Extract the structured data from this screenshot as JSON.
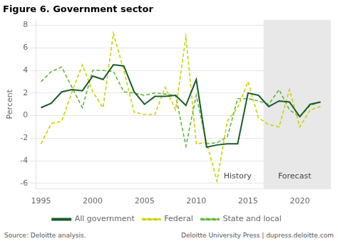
{
  "chart_data": {
    "type": "line",
    "title": "Figure 6. Government sector",
    "ylabel": "Percent",
    "footnotes": [
      "Source: Deloitte analysis.",
      "Deloitte University Press  |  dupress.deloitte.com"
    ],
    "x": [
      1995,
      1996,
      1997,
      1998,
      1999,
      2000,
      2001,
      2002,
      2003,
      2004,
      2005,
      2006,
      2007,
      2008,
      2009,
      2010,
      2011,
      2012,
      2013,
      2014,
      2015,
      2016,
      2017,
      2018,
      2019,
      2020,
      2021,
      2022
    ],
    "series": [
      {
        "name": "All government",
        "color": "#1a5c2a",
        "line_style": "solid",
        "values": [
          0.7,
          1.1,
          2.1,
          2.3,
          2.2,
          3.5,
          3.2,
          4.5,
          4.4,
          2.1,
          1.0,
          1.7,
          1.7,
          1.8,
          0.9,
          3.2,
          -2.8,
          -2.6,
          -2.5,
          -2.5,
          2.0,
          1.8,
          0.8,
          1.3,
          1.2,
          -0.1,
          1.0,
          1.2
        ]
      },
      {
        "name": "Federal",
        "color": "#c8d400",
        "line_style": "dashed",
        "values": [
          -2.5,
          -0.7,
          -0.5,
          2.1,
          4.5,
          2.1,
          0.7,
          7.3,
          4.0,
          0.3,
          0.1,
          0.1,
          2.5,
          0.5,
          7.0,
          -2.5,
          -2.4,
          -5.8,
          -0.5,
          0.7,
          3.0,
          -0.2,
          -0.8,
          -1.0,
          2.3,
          -1.0,
          0.5,
          0.8
        ]
      },
      {
        "name": "State and local",
        "color": "#5db838",
        "line_style": "dashed",
        "values": [
          3.0,
          3.9,
          4.3,
          2.5,
          0.7,
          4.0,
          4.0,
          3.9,
          2.1,
          2.0,
          1.8,
          2.0,
          1.9,
          1.8,
          -2.7,
          1.8,
          -2.5,
          -2.4,
          -1.9,
          1.5,
          1.5,
          1.3,
          1.0,
          2.3,
          0.5,
          -0.1,
          0.9,
          1.2
        ]
      }
    ],
    "regions": [
      {
        "x0": 2016.5,
        "x1": 2023.0,
        "color": "#e8e8e8"
      }
    ],
    "annotations": [
      {
        "text": "History",
        "x": 2014.0,
        "y": -5.4
      },
      {
        "text": "Forecast",
        "x": 2019.5,
        "y": -5.4
      }
    ],
    "xlim": [
      1994.5,
      2023.0
    ],
    "ylim": [
      -6.5,
      8.5
    ],
    "xticks": [
      1995,
      2000,
      2005,
      2010,
      2015,
      2020
    ],
    "yticks": [
      -6,
      -4,
      -2,
      0,
      2,
      4,
      6,
      8
    ],
    "grid": "y",
    "legend": "bottom"
  }
}
